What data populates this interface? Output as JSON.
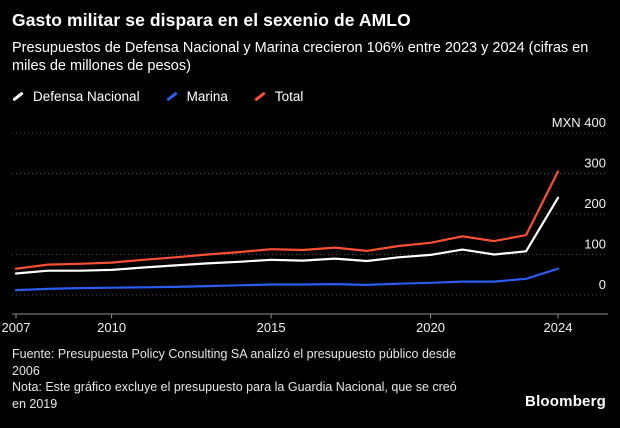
{
  "chart_data": {
    "type": "line",
    "title": "Gasto militar se dispara en el sexenio de AMLO",
    "subtitle": "Presupuestos de Defensa Nacional y Marina crecieron 106% entre 2023 y 2024 (cifras en miles de millones de pesos)",
    "x": [
      2007,
      2008,
      2009,
      2010,
      2011,
      2012,
      2013,
      2014,
      2015,
      2016,
      2017,
      2018,
      2019,
      2020,
      2021,
      2022,
      2023,
      2024
    ],
    "series": [
      {
        "name": "Defensa Nacional",
        "color": "#ffffff",
        "values": [
          53,
          60,
          60,
          62,
          68,
          73,
          78,
          82,
          87,
          85,
          90,
          84,
          93,
          99,
          112,
          100,
          108,
          240
        ]
      },
      {
        "name": "Marina",
        "color": "#2b5cf0",
        "values": [
          12,
          15,
          17,
          18,
          19,
          20,
          22,
          24,
          26,
          26,
          27,
          25,
          28,
          30,
          33,
          33,
          40,
          65
        ]
      },
      {
        "name": "Total",
        "color": "#fb4f33",
        "values": [
          65,
          75,
          77,
          80,
          87,
          93,
          100,
          106,
          113,
          111,
          117,
          109,
          121,
          129,
          145,
          133,
          148,
          305
        ]
      }
    ],
    "ylim": [
      0,
      400
    ],
    "yticks": [
      0,
      100,
      200,
      300,
      400
    ],
    "ytick_labels": [
      "0",
      "100",
      "200",
      "300",
      "MXN 400"
    ],
    "xticks": [
      2007,
      2010,
      2015,
      2020,
      2024
    ],
    "xtick_labels": [
      "2007",
      "2010",
      "2015",
      "2020",
      "2024"
    ],
    "unit": "MXN, miles de millones de pesos",
    "grid": "horizontal-dotted",
    "grid_color": "#4d4d4d",
    "axis_color": "#8f8f8f",
    "tick_label_color": "#f2f2f2",
    "legend_position": "top-left",
    "background": "#000000"
  },
  "footer": {
    "source_lines": [
      "Fuente: Presupuesta Policy Consulting SA analizó el presupuesto público desde",
      "2006"
    ],
    "note_lines": [
      "Nota: Este gráfico excluye el presupuesto para la Guardia Nacional, que se creó",
      "en 2019"
    ],
    "brand": "Bloomberg"
  }
}
